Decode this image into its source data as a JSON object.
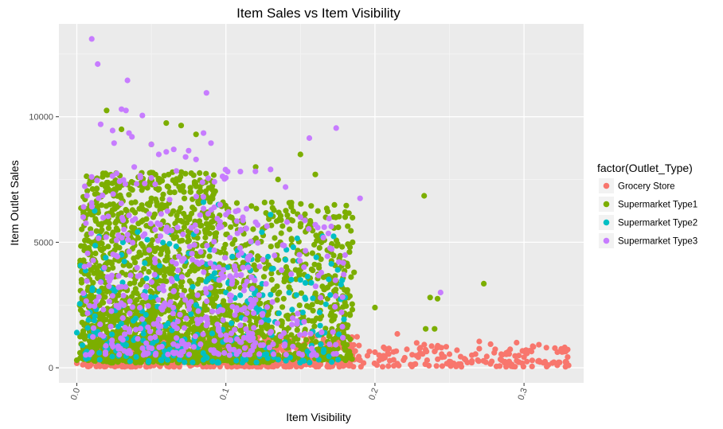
{
  "chart_data": {
    "type": "scatter",
    "title": "Item Sales vs Item Visibility",
    "xlabel": "Item Visibility",
    "ylabel": "Item Outlet Sales",
    "xlim": [
      -0.012,
      0.34
    ],
    "ylim": [
      -600,
      13700
    ],
    "x_ticks": [
      "0.0",
      "0.1",
      "0.2",
      "0.3"
    ],
    "x_tick_values": [
      0.0,
      0.1,
      0.2,
      0.3
    ],
    "y_ticks": [
      "0",
      "5000",
      "10000"
    ],
    "y_tick_values": [
      0,
      5000,
      10000
    ],
    "grid": true,
    "panel_background": "#ebebeb",
    "legend": {
      "title": "factor(Outlet_Type)",
      "placement": "right"
    },
    "series": [
      {
        "name": "Grocery Store",
        "color": "#F8766D",
        "points": [
          [
            0.0,
            180
          ],
          [
            0.004,
            120
          ],
          [
            0.01,
            350
          ],
          [
            0.02,
            260
          ],
          [
            0.03,
            150
          ],
          [
            0.04,
            300
          ],
          [
            0.05,
            200
          ],
          [
            0.06,
            180
          ],
          [
            0.07,
            350
          ],
          [
            0.08,
            250
          ],
          [
            0.09,
            160
          ],
          [
            0.1,
            320
          ],
          [
            0.11,
            210
          ],
          [
            0.12,
            420
          ],
          [
            0.13,
            380
          ],
          [
            0.14,
            520
          ],
          [
            0.15,
            610
          ],
          [
            0.16,
            450
          ],
          [
            0.17,
            700
          ],
          [
            0.18,
            900
          ],
          [
            0.185,
            520
          ],
          [
            0.19,
            300
          ],
          [
            0.195,
            480
          ],
          [
            0.2,
            620
          ],
          [
            0.205,
            350
          ],
          [
            0.21,
            280
          ],
          [
            0.215,
            1350
          ],
          [
            0.22,
            400
          ],
          [
            0.225,
            520
          ],
          [
            0.23,
            760
          ],
          [
            0.235,
            300
          ],
          [
            0.24,
            650
          ],
          [
            0.245,
            420
          ],
          [
            0.25,
            540
          ],
          [
            0.255,
            700
          ],
          [
            0.26,
            360
          ],
          [
            0.265,
            500
          ],
          [
            0.27,
            1050
          ],
          [
            0.275,
            450
          ],
          [
            0.28,
            600
          ],
          [
            0.285,
            300
          ],
          [
            0.29,
            550
          ],
          [
            0.295,
            1000
          ],
          [
            0.3,
            420
          ],
          [
            0.305,
            650
          ],
          [
            0.31,
            280
          ],
          [
            0.315,
            800
          ],
          [
            0.32,
            220
          ],
          [
            0.325,
            750
          ],
          [
            0.328,
            650
          ],
          [
            0.262,
            210
          ],
          [
            0.232,
            550
          ],
          [
            0.25,
            250
          ],
          [
            0.29,
            250
          ],
          [
            0.31,
            920
          ],
          [
            0.27,
            760
          ]
        ],
        "clusters": [
          {
            "x": [
              0.005,
              0.19
            ],
            "y": [
              40,
              1300
            ],
            "n": 650
          },
          {
            "x": [
              0.19,
              0.33
            ],
            "y": [
              40,
              1000
            ],
            "n": 130
          }
        ]
      },
      {
        "name": "Supermarket Type1",
        "color": "#7CAE00",
        "points": [
          [
            0.02,
            10250
          ],
          [
            0.03,
            9500
          ],
          [
            0.05,
            8900
          ],
          [
            0.06,
            9750
          ],
          [
            0.07,
            9650
          ],
          [
            0.08,
            9300
          ],
          [
            0.12,
            8000
          ],
          [
            0.135,
            7500
          ],
          [
            0.15,
            8500
          ],
          [
            0.16,
            7700
          ],
          [
            0.18,
            6000
          ],
          [
            0.185,
            5000
          ],
          [
            0.2,
            2400
          ],
          [
            0.233,
            6850
          ],
          [
            0.234,
            1550
          ],
          [
            0.237,
            2800
          ],
          [
            0.24,
            1550
          ],
          [
            0.242,
            2750
          ],
          [
            0.273,
            3350
          ],
          [
            0.0,
            300
          ],
          [
            0.005,
            1700
          ],
          [
            0.012,
            4000
          ],
          [
            0.186,
            3800
          ],
          [
            0.18,
            6200
          ],
          [
            0.18,
            700
          ]
        ],
        "clusters": [
          {
            "x": [
              0.002,
              0.095
            ],
            "y": [
              300,
              7800
            ],
            "n": 1300
          },
          {
            "x": [
              0.095,
              0.185
            ],
            "y": [
              300,
              6600
            ],
            "n": 650
          },
          {
            "x": [
              0.01,
              0.13
            ],
            "y": [
              200,
              2500
            ],
            "n": 450
          }
        ]
      },
      {
        "name": "Supermarket Type2",
        "color": "#00BFC4",
        "points": [
          [
            0.012,
            6250
          ],
          [
            0.03,
            4500
          ],
          [
            0.055,
            1500
          ],
          [
            0.08,
            2500
          ],
          [
            0.1,
            3000
          ],
          [
            0.12,
            2400
          ],
          [
            0.14,
            4300
          ],
          [
            0.15,
            3500
          ],
          [
            0.17,
            2900
          ],
          [
            0.175,
            3900
          ],
          [
            0.18,
            2800
          ],
          [
            0.085,
            6600
          ],
          [
            0.095,
            6500
          ],
          [
            0.13,
            6100
          ],
          [
            0.0,
            1400
          ],
          [
            0.005,
            2900
          ]
        ],
        "clusters": [
          {
            "x": [
              0.002,
              0.18
            ],
            "y": [
              200,
              5500
            ],
            "n": 260
          }
        ]
      },
      {
        "name": "Supermarket Type3",
        "color": "#C77CFF",
        "points": [
          [
            0.01,
            13100
          ],
          [
            0.014,
            12100
          ],
          [
            0.034,
            11450
          ],
          [
            0.044,
            10050
          ],
          [
            0.03,
            10300
          ],
          [
            0.033,
            10250
          ],
          [
            0.087,
            10950
          ],
          [
            0.016,
            9700
          ],
          [
            0.024,
            9450
          ],
          [
            0.035,
            9350
          ],
          [
            0.037,
            9200
          ],
          [
            0.025,
            8950
          ],
          [
            0.05,
            8900
          ],
          [
            0.055,
            8500
          ],
          [
            0.06,
            8600
          ],
          [
            0.065,
            8700
          ],
          [
            0.075,
            8650
          ],
          [
            0.085,
            9350
          ],
          [
            0.09,
            8950
          ],
          [
            0.073,
            8400
          ],
          [
            0.08,
            8300
          ],
          [
            0.1,
            6100
          ],
          [
            0.11,
            5500
          ],
          [
            0.13,
            7900
          ],
          [
            0.14,
            7200
          ],
          [
            0.156,
            9150
          ],
          [
            0.174,
            9550
          ],
          [
            0.19,
            6750
          ],
          [
            0.244,
            3000
          ],
          [
            0.15,
            6000
          ],
          [
            0.16,
            5700
          ],
          [
            0.12,
            5800
          ]
        ],
        "clusters": [
          {
            "x": [
              0.004,
              0.12
            ],
            "y": [
              500,
              8000
            ],
            "n": 380
          },
          {
            "x": [
              0.1,
              0.18
            ],
            "y": [
              500,
              6000
            ],
            "n": 110
          }
        ]
      }
    ]
  }
}
